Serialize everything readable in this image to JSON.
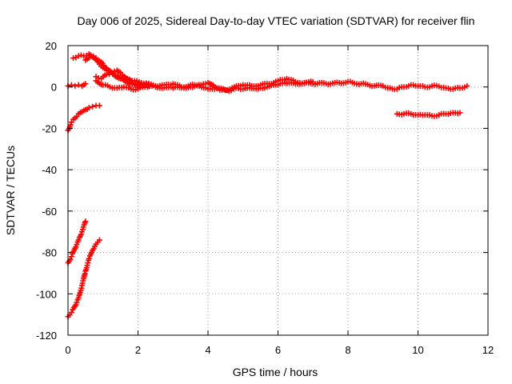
{
  "chart_data": {
    "type": "scatter",
    "title": "Day 006 of 2025, Sidereal Day-to-day VTEC variation (SDTVAR) for receiver flin",
    "xlabel": "GPS time / hours",
    "ylabel": "SDTVAR / TECUs",
    "xlim": [
      0,
      12
    ],
    "ylim": [
      -120,
      20
    ],
    "xticks": [
      0,
      2,
      4,
      6,
      8,
      10,
      12
    ],
    "yticks": [
      -120,
      -100,
      -80,
      -60,
      -40,
      -20,
      0,
      20
    ],
    "grid": true,
    "legend": "none",
    "marker": "plus",
    "color": "#ff0000",
    "series": [
      {
        "segments": [
          {
            "x": [
              0.0,
              0.1,
              0.2,
              0.3,
              0.4,
              0.5
            ],
            "y": [
              -85,
              -82,
              -78,
              -74,
              -70,
              -65
            ]
          },
          {
            "x": [
              0.0,
              0.1,
              0.2,
              0.3,
              0.4,
              0.5,
              0.6,
              0.7,
              0.8,
              0.9
            ],
            "y": [
              -111,
              -109,
              -106,
              -102,
              -96,
              -89,
              -83,
              -79,
              -76,
              -74
            ]
          },
          {
            "x": [
              0.0,
              0.1,
              0.2,
              0.3,
              0.4,
              0.5,
              0.6,
              0.7,
              0.8,
              0.9
            ],
            "y": [
              -21,
              -17,
              -15,
              -13,
              -12,
              -11,
              -10,
              -9.5,
              -9,
              -9
            ]
          },
          {
            "x": [
              0.0,
              0.1,
              0.2,
              0.3,
              0.4,
              0.5
            ],
            "y": [
              0.5,
              1,
              0.5,
              1,
              0.5,
              1.5
            ]
          },
          {
            "x": [
              0.15,
              0.3,
              0.45,
              0.6,
              0.75,
              0.9,
              1.05,
              1.2,
              1.35,
              1.5,
              1.7,
              1.9,
              2.1,
              2.3
            ],
            "y": [
              14,
              15,
              15,
              16,
              14,
              11,
              9,
              7,
              6,
              5,
              4,
              3,
              2,
              1.5
            ]
          },
          {
            "x": [
              0.5,
              0.65,
              0.8,
              0.95,
              1.1,
              1.3,
              1.5,
              1.7,
              1.9,
              2.1,
              2.3
            ],
            "y": [
              13,
              15,
              14,
              12,
              9,
              6,
              4,
              2,
              1,
              0.5,
              0.5
            ]
          },
          {
            "x": [
              0.8,
              0.95,
              1.1,
              1.25,
              1.4,
              1.55,
              1.7,
              1.85,
              2.0
            ],
            "y": [
              5,
              4,
              6,
              7,
              8,
              6,
              4,
              2,
              1
            ]
          },
          {
            "x": [
              0.8,
              1.0,
              1.2,
              1.4,
              1.6,
              1.8,
              2.0,
              2.2,
              2.4
            ],
            "y": [
              3,
              1,
              0,
              -0.5,
              0,
              -1,
              -1,
              0,
              0.5
            ]
          },
          {
            "x": [
              2.0,
              2.25,
              2.5,
              2.75,
              3.0,
              3.25,
              3.5,
              3.75,
              4.0,
              4.25,
              4.5,
              4.75,
              5.0,
              5.25,
              5.5,
              5.75,
              6.0,
              6.25,
              6.5,
              6.75,
              7.0,
              7.25,
              7.5,
              7.75,
              8.0,
              8.25,
              8.5,
              8.75,
              9.0,
              9.2
            ],
            "y": [
              1,
              1.5,
              0.5,
              1,
              1.5,
              0,
              1,
              0.5,
              -1,
              -0.5,
              -1.5,
              0,
              1,
              0.5,
              1,
              1.5,
              3,
              4,
              2.5,
              2,
              1.5,
              2,
              1.5,
              2,
              2.5,
              1.5,
              1.5,
              0.5,
              0.5,
              -0.5
            ]
          },
          {
            "x": [
              2.5,
              3.0,
              3.5,
              3.8,
              4.0,
              4.2,
              4.4,
              4.6,
              4.8,
              5.0,
              5.5,
              6.0,
              6.2,
              6.5,
              7.0
            ],
            "y": [
              0,
              -0.5,
              0,
              1,
              2,
              0,
              -1.5,
              -2,
              -0.5,
              -1,
              -0.5,
              1,
              2,
              1.5,
              2.5
            ]
          },
          {
            "x": [
              9.2,
              9.4,
              9.6,
              9.8,
              10.0,
              10.2,
              10.4,
              10.6,
              10.8,
              11.0,
              11.2,
              11.4
            ],
            "y": [
              -0.5,
              -1,
              0,
              1,
              0.5,
              0,
              0.5,
              0.3,
              -0.5,
              -1,
              -0.5,
              0.5
            ]
          },
          {
            "x": [
              9.4,
              9.6,
              9.8,
              10.0,
              10.2,
              10.4,
              10.6,
              10.8,
              11.0,
              11.2
            ],
            "y": [
              -13,
              -13,
              -13,
              -13.5,
              -13.5,
              -14,
              -13.5,
              -13,
              -12.5,
              -12.5
            ]
          }
        ]
      }
    ]
  }
}
